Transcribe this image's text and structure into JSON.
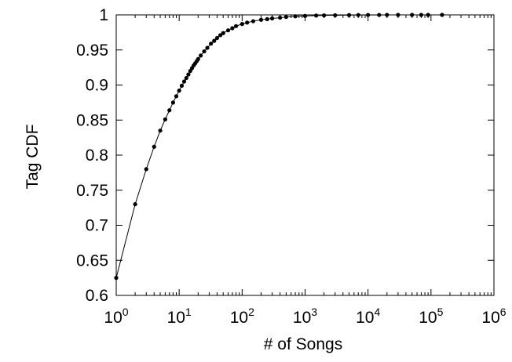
{
  "chart_data": {
    "type": "line",
    "title": "",
    "xlabel": "# of Songs",
    "ylabel": "Tag CDF",
    "x_scale": "log",
    "xlim": [
      1,
      1000000
    ],
    "ylim": [
      0.6,
      1
    ],
    "grid": false,
    "x_ticks": [
      {
        "base": "10",
        "exp": "0",
        "value": 1
      },
      {
        "base": "10",
        "exp": "1",
        "value": 10
      },
      {
        "base": "10",
        "exp": "2",
        "value": 100
      },
      {
        "base": "10",
        "exp": "3",
        "value": 1000
      },
      {
        "base": "10",
        "exp": "4",
        "value": 10000
      },
      {
        "base": "10",
        "exp": "5",
        "value": 100000
      },
      {
        "base": "10",
        "exp": "6",
        "value": 1000000
      }
    ],
    "y_ticks": [
      "0.6",
      "0.65",
      "0.7",
      "0.75",
      "0.8",
      "0.85",
      "0.9",
      "0.95",
      "1"
    ],
    "series": [
      {
        "color": "#000000",
        "marker": "circle",
        "x": [
          1,
          2,
          3,
          4,
          5,
          6,
          7,
          8,
          9,
          10,
          11,
          12,
          13,
          14,
          15,
          16,
          17,
          18,
          19,
          20,
          22,
          25,
          28,
          32,
          36,
          40,
          45,
          50,
          60,
          70,
          80,
          100,
          120,
          150,
          200,
          250,
          300,
          400,
          500,
          700,
          1000,
          1500,
          2000,
          3000,
          5000,
          7000,
          10000,
          15000,
          20000,
          30000,
          50000,
          70000,
          90000,
          150000
        ],
        "y": [
          0.625,
          0.73,
          0.78,
          0.812,
          0.835,
          0.851,
          0.864,
          0.875,
          0.884,
          0.892,
          0.899,
          0.905,
          0.91,
          0.915,
          0.92,
          0.924,
          0.928,
          0.931,
          0.934,
          0.937,
          0.942,
          0.948,
          0.953,
          0.959,
          0.963,
          0.967,
          0.971,
          0.974,
          0.978,
          0.981,
          0.984,
          0.987,
          0.989,
          0.991,
          0.993,
          0.994,
          0.995,
          0.996,
          0.997,
          0.998,
          0.9985,
          0.999,
          0.9993,
          0.9995,
          0.9997,
          0.9998,
          0.9999,
          0.9999,
          1,
          1,
          1,
          1,
          1,
          1
        ]
      }
    ]
  }
}
